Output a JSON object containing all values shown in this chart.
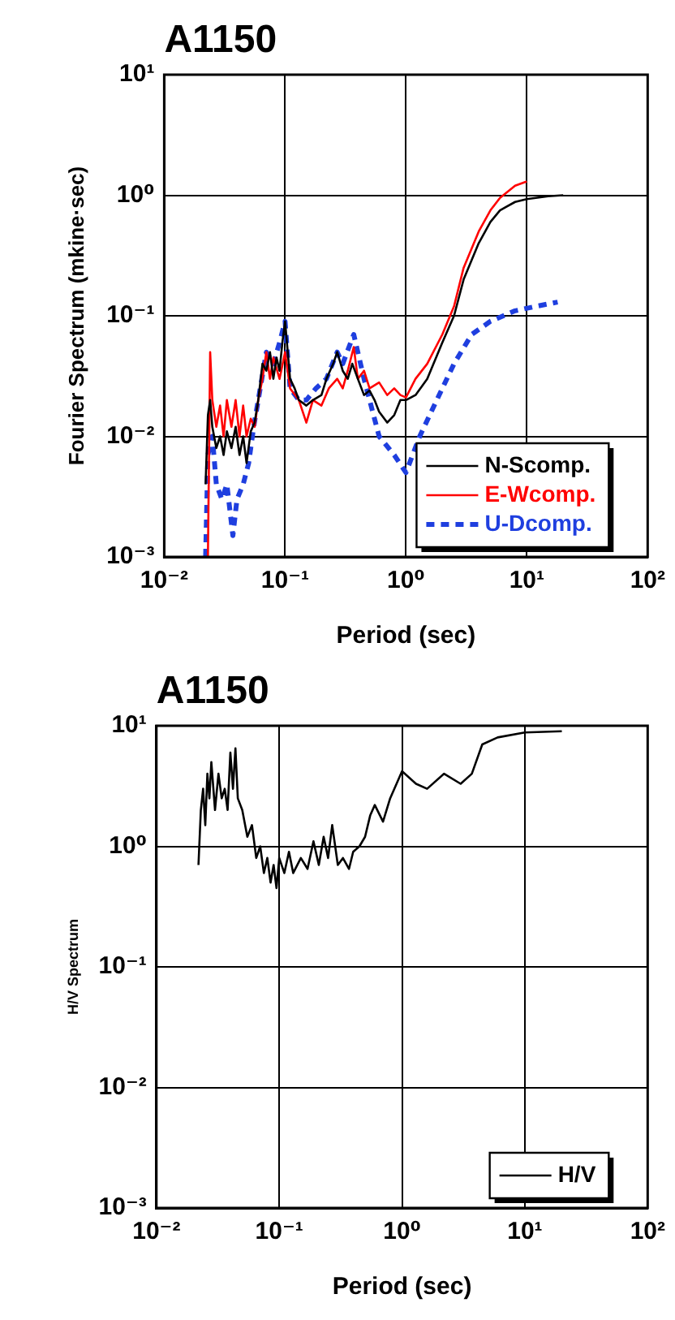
{
  "chart_data": [
    {
      "type": "line",
      "title": "A1150",
      "xlabel": "Period (sec)",
      "ylabel": "Fourier Spectrum (mkine·sec)",
      "log": "xy",
      "grid": true,
      "legend": "bottom right",
      "xlim": [
        0.01,
        100
      ],
      "ylim": [
        0.001,
        10
      ],
      "xticks": [
        {
          "value": 0.01,
          "label": "10⁻²"
        },
        {
          "value": 0.1,
          "label": "10⁻¹"
        },
        {
          "value": 1,
          "label": "10⁰"
        },
        {
          "value": 10,
          "label": "10¹"
        },
        {
          "value": 100,
          "label": "10²"
        }
      ],
      "yticks": [
        {
          "value": 0.001,
          "label": "10⁻³"
        },
        {
          "value": 0.01,
          "label": "10⁻²"
        },
        {
          "value": 0.1,
          "label": "10⁻¹"
        },
        {
          "value": 1,
          "label": "10⁰"
        },
        {
          "value": 10,
          "label": "10¹"
        }
      ],
      "series": [
        {
          "name": "N-Scomp.",
          "color": "#000000",
          "line_style": "solid",
          "x": [
            0.022,
            0.023,
            0.024,
            0.025,
            0.027,
            0.029,
            0.031,
            0.033,
            0.036,
            0.039,
            0.042,
            0.045,
            0.048,
            0.052,
            0.056,
            0.06,
            0.065,
            0.07,
            0.075,
            0.08,
            0.085,
            0.09,
            0.095,
            0.1,
            0.11,
            0.12,
            0.13,
            0.15,
            0.17,
            0.2,
            0.22,
            0.25,
            0.27,
            0.3,
            0.33,
            0.36,
            0.4,
            0.45,
            0.5,
            0.55,
            0.6,
            0.7,
            0.8,
            0.9,
            1,
            1.2,
            1.5,
            2,
            2.5,
            3,
            4,
            5,
            6,
            8,
            10,
            15,
            20
          ],
          "values": [
            0.004,
            0.015,
            0.02,
            0.012,
            0.008,
            0.01,
            0.007,
            0.011,
            0.008,
            0.012,
            0.007,
            0.01,
            0.006,
            0.011,
            0.013,
            0.02,
            0.04,
            0.035,
            0.05,
            0.03,
            0.045,
            0.035,
            0.06,
            0.09,
            0.03,
            0.025,
            0.02,
            0.018,
            0.02,
            0.022,
            0.03,
            0.04,
            0.05,
            0.035,
            0.03,
            0.04,
            0.03,
            0.022,
            0.024,
            0.02,
            0.016,
            0.013,
            0.015,
            0.02,
            0.02,
            0.022,
            0.03,
            0.06,
            0.1,
            0.2,
            0.4,
            0.6,
            0.75,
            0.88,
            0.93,
            0.98,
            1.0
          ]
        },
        {
          "name": "E-Wcomp.",
          "color": "#ff0000",
          "line_style": "solid",
          "x": [
            0.023,
            0.024,
            0.025,
            0.027,
            0.029,
            0.031,
            0.033,
            0.036,
            0.039,
            0.042,
            0.045,
            0.048,
            0.052,
            0.056,
            0.06,
            0.065,
            0.07,
            0.075,
            0.08,
            0.09,
            0.1,
            0.11,
            0.13,
            0.15,
            0.17,
            0.2,
            0.23,
            0.27,
            0.3,
            0.33,
            0.37,
            0.4,
            0.45,
            0.5,
            0.6,
            0.7,
            0.8,
            0.9,
            1,
            1.2,
            1.5,
            2,
            2.5,
            3,
            4,
            5,
            6,
            8,
            10
          ],
          "values": [
            0.001,
            0.05,
            0.02,
            0.012,
            0.018,
            0.01,
            0.02,
            0.012,
            0.02,
            0.01,
            0.018,
            0.01,
            0.014,
            0.012,
            0.02,
            0.03,
            0.05,
            0.03,
            0.045,
            0.03,
            0.05,
            0.025,
            0.02,
            0.013,
            0.02,
            0.018,
            0.025,
            0.03,
            0.025,
            0.035,
            0.055,
            0.03,
            0.035,
            0.025,
            0.028,
            0.022,
            0.025,
            0.022,
            0.021,
            0.03,
            0.04,
            0.07,
            0.12,
            0.25,
            0.5,
            0.75,
            0.95,
            1.2,
            1.3
          ]
        },
        {
          "name": "U-Dcomp.",
          "color": "#1f3fdf",
          "line_style": "dashed",
          "x": [
            0.022,
            0.023,
            0.025,
            0.027,
            0.03,
            0.033,
            0.037,
            0.04,
            0.045,
            0.05,
            0.055,
            0.06,
            0.07,
            0.08,
            0.09,
            0.1,
            0.11,
            0.13,
            0.15,
            0.18,
            0.22,
            0.27,
            0.3,
            0.37,
            0.45,
            0.6,
            0.8,
            1,
            1.3,
            1.8,
            2.5,
            3.5,
            5,
            8,
            12,
            18
          ],
          "values": [
            0.001,
            0.007,
            0.01,
            0.004,
            0.003,
            0.004,
            0.0015,
            0.003,
            0.004,
            0.006,
            0.012,
            0.02,
            0.05,
            0.04,
            0.06,
            0.09,
            0.025,
            0.02,
            0.02,
            0.025,
            0.03,
            0.05,
            0.04,
            0.07,
            0.03,
            0.01,
            0.007,
            0.005,
            0.01,
            0.02,
            0.04,
            0.07,
            0.09,
            0.11,
            0.12,
            0.13
          ]
        }
      ]
    },
    {
      "type": "line",
      "title": "A1150",
      "xlabel": "Period (sec)",
      "ylabel": "H/V Spectrum",
      "log": "xy",
      "grid": true,
      "legend": "bottom right",
      "xlim": [
        0.01,
        100
      ],
      "ylim": [
        0.001,
        10
      ],
      "xticks": [
        {
          "value": 0.01,
          "label": "10⁻²"
        },
        {
          "value": 0.1,
          "label": "10⁻¹"
        },
        {
          "value": 1,
          "label": "10⁰"
        },
        {
          "value": 10,
          "label": "10¹"
        },
        {
          "value": 100,
          "label": "10²"
        }
      ],
      "yticks": [
        {
          "value": 0.001,
          "label": "10⁻³"
        },
        {
          "value": 0.01,
          "label": "10⁻²"
        },
        {
          "value": 0.1,
          "label": "10⁻¹"
        },
        {
          "value": 1,
          "label": "10⁰"
        },
        {
          "value": 10,
          "label": "10¹"
        }
      ],
      "series": [
        {
          "name": "H/V",
          "color": "#000000",
          "line_style": "solid",
          "x": [
            0.022,
            0.023,
            0.024,
            0.025,
            0.026,
            0.027,
            0.028,
            0.03,
            0.032,
            0.034,
            0.036,
            0.038,
            0.04,
            0.042,
            0.044,
            0.046,
            0.05,
            0.055,
            0.06,
            0.065,
            0.07,
            0.075,
            0.08,
            0.085,
            0.09,
            0.095,
            0.1,
            0.11,
            0.12,
            0.13,
            0.15,
            0.17,
            0.19,
            0.21,
            0.23,
            0.25,
            0.27,
            0.3,
            0.33,
            0.37,
            0.4,
            0.45,
            0.5,
            0.55,
            0.6,
            0.7,
            0.8,
            1,
            1.3,
            1.6,
            2.2,
            3,
            3.7,
            4.5,
            6,
            10,
            20
          ],
          "values": [
            0.7,
            2,
            3,
            1.5,
            4,
            2.5,
            5,
            2,
            4,
            2.5,
            3,
            2,
            6,
            3,
            6.5,
            2.5,
            2,
            1.2,
            1.5,
            0.8,
            1,
            0.6,
            0.8,
            0.5,
            0.7,
            0.45,
            0.8,
            0.6,
            0.9,
            0.6,
            0.8,
            0.65,
            1.1,
            0.7,
            1.2,
            0.8,
            1.5,
            0.7,
            0.8,
            0.65,
            0.9,
            1,
            1.2,
            1.8,
            2.2,
            1.6,
            2.5,
            4.2,
            3.3,
            3,
            4,
            3.3,
            4,
            7,
            8,
            8.8,
            9
          ]
        }
      ]
    }
  ]
}
